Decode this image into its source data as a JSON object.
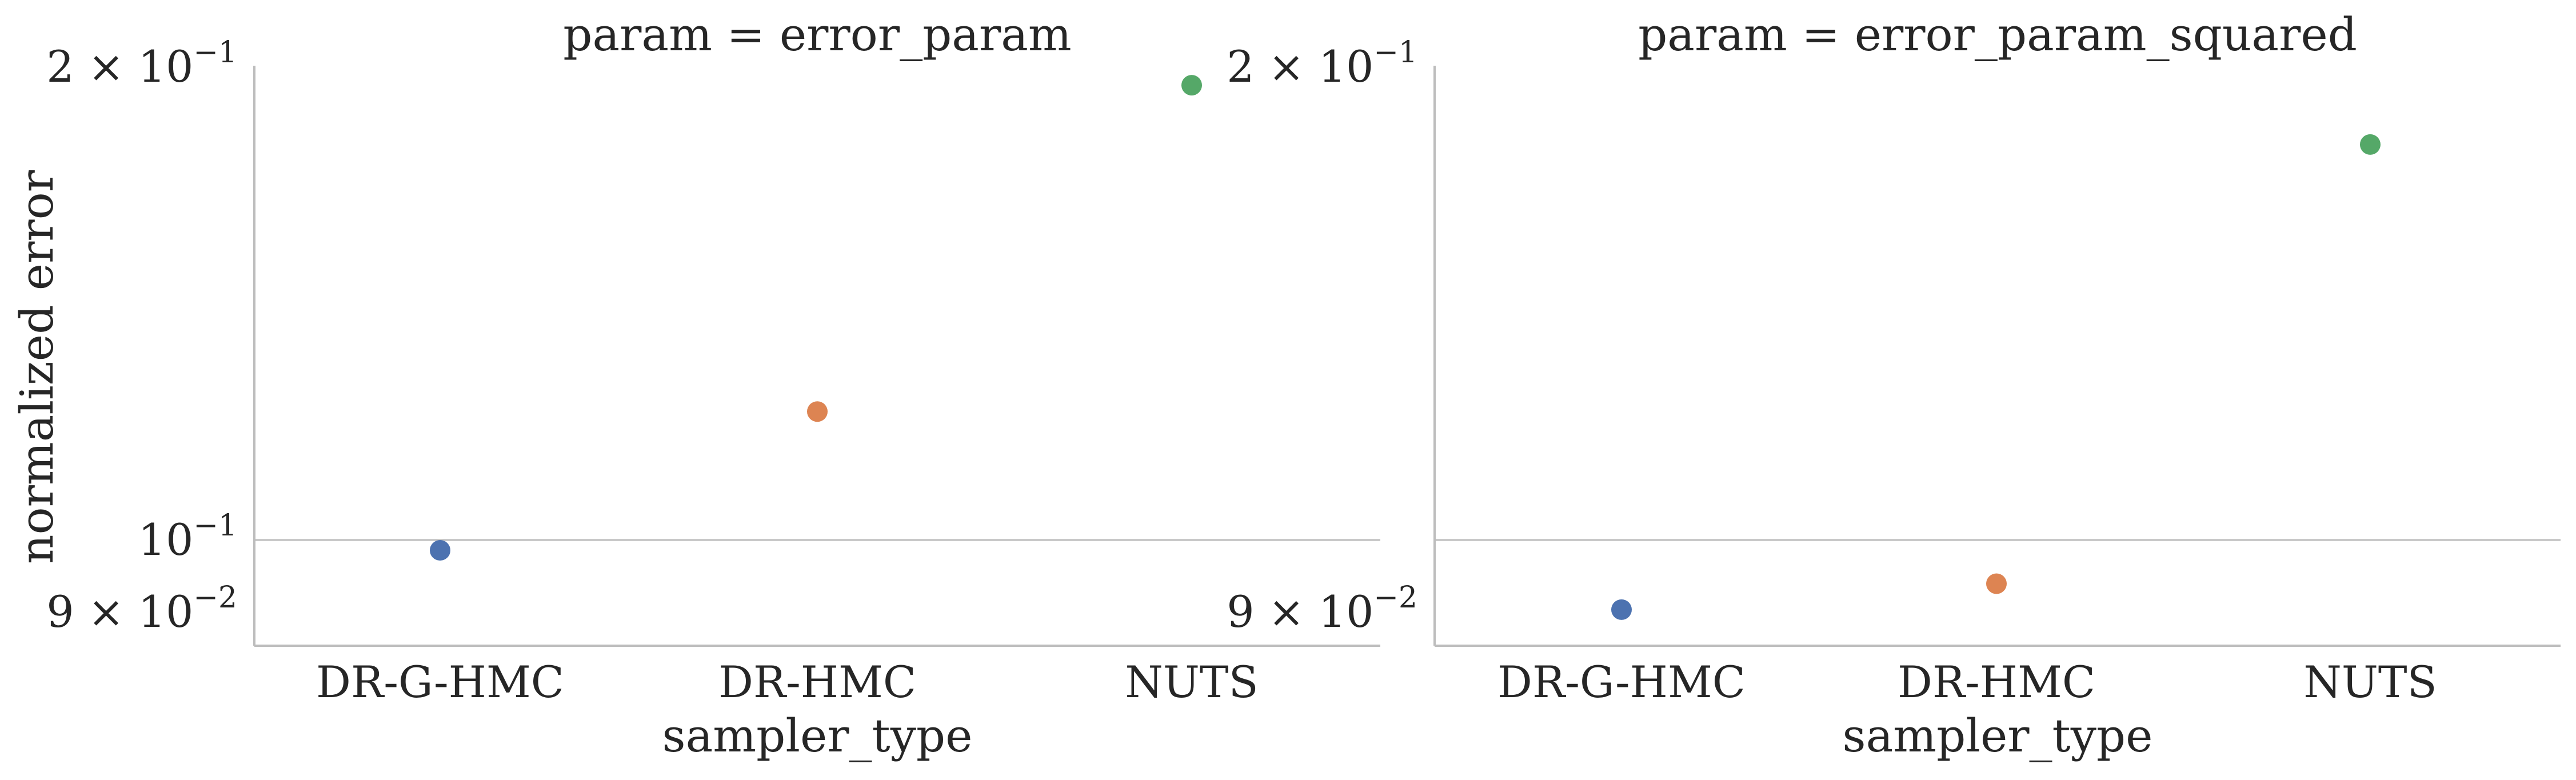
{
  "chart_data": [
    {
      "type": "scatter",
      "title": "param = error_param",
      "xlabel": "sampler_type",
      "ylabel": "normalized error",
      "categories": [
        "DR-G-HMC",
        "DR-HMC",
        "NUTS"
      ],
      "values": [
        0.0985,
        0.1207,
        0.1947
      ],
      "colors": [
        "#4c72b0",
        "#dd8452",
        "#55a868"
      ],
      "yscale": "log",
      "ylim": [
        0.088,
        0.202
      ],
      "yticks": [
        {
          "value": 0.2,
          "label": "2 × 10^-1",
          "base": "2 × 10",
          "exp": "−1"
        },
        {
          "value": 0.1,
          "label": "10^-1",
          "base": "10",
          "exp": "−1"
        },
        {
          "value": 0.09,
          "label": "9 × 10^-2",
          "base": "9 × 10",
          "exp": "−2"
        }
      ],
      "grid": "horizontal line at 10^-1"
    },
    {
      "type": "scatter",
      "title": "param = error_param_squared",
      "xlabel": "sampler_type",
      "ylabel": "",
      "categories": [
        "DR-G-HMC",
        "DR-HMC",
        "NUTS"
      ],
      "values": [
        0.0903,
        0.0938,
        0.1785
      ],
      "colors": [
        "#4c72b0",
        "#dd8452",
        "#55a868"
      ],
      "yscale": "log",
      "ylim": [
        0.088,
        0.202
      ],
      "yticks": [
        {
          "value": 0.2,
          "label": "2 × 10^-1",
          "base": "2 × 10",
          "exp": "−1"
        },
        {
          "value": 0.09,
          "label": "9 × 10^-2",
          "base": "9 × 10",
          "exp": "−2"
        }
      ],
      "grid": "horizontal line at 10^-1"
    }
  ]
}
